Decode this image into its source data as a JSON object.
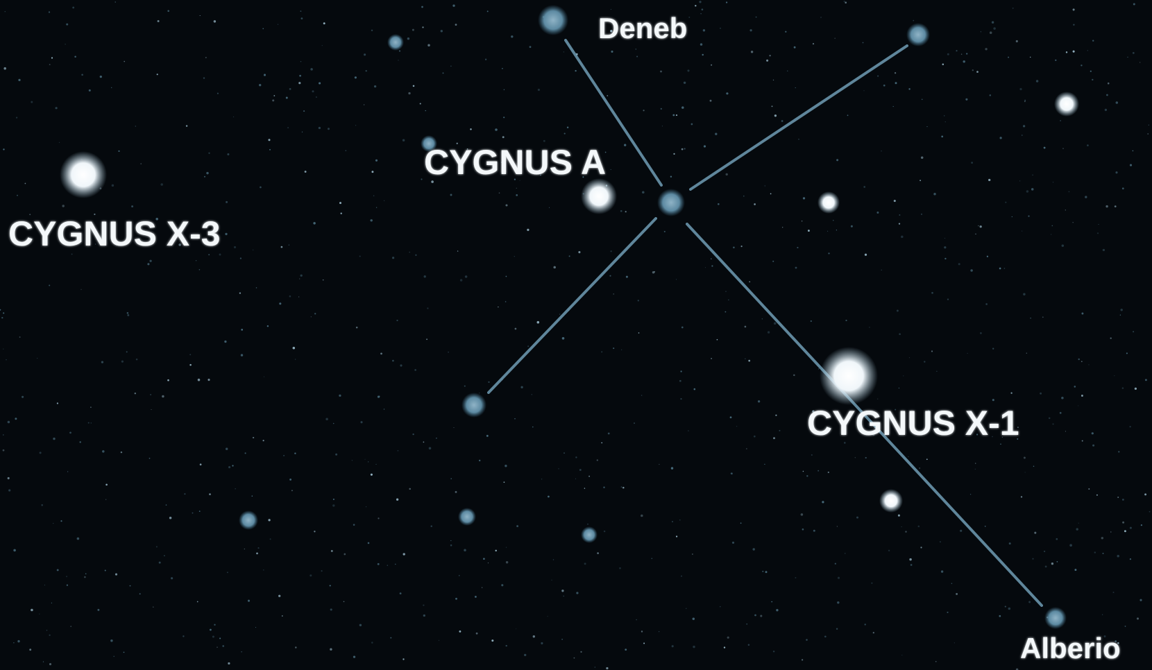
{
  "labels": {
    "deneb": "Deneb",
    "cygnus_a": "CYGNUS A",
    "cygnus_x3": "CYGNUS X-3",
    "cygnus_x1": "CYGNUS X-1",
    "alberio": "Alberio"
  }
}
